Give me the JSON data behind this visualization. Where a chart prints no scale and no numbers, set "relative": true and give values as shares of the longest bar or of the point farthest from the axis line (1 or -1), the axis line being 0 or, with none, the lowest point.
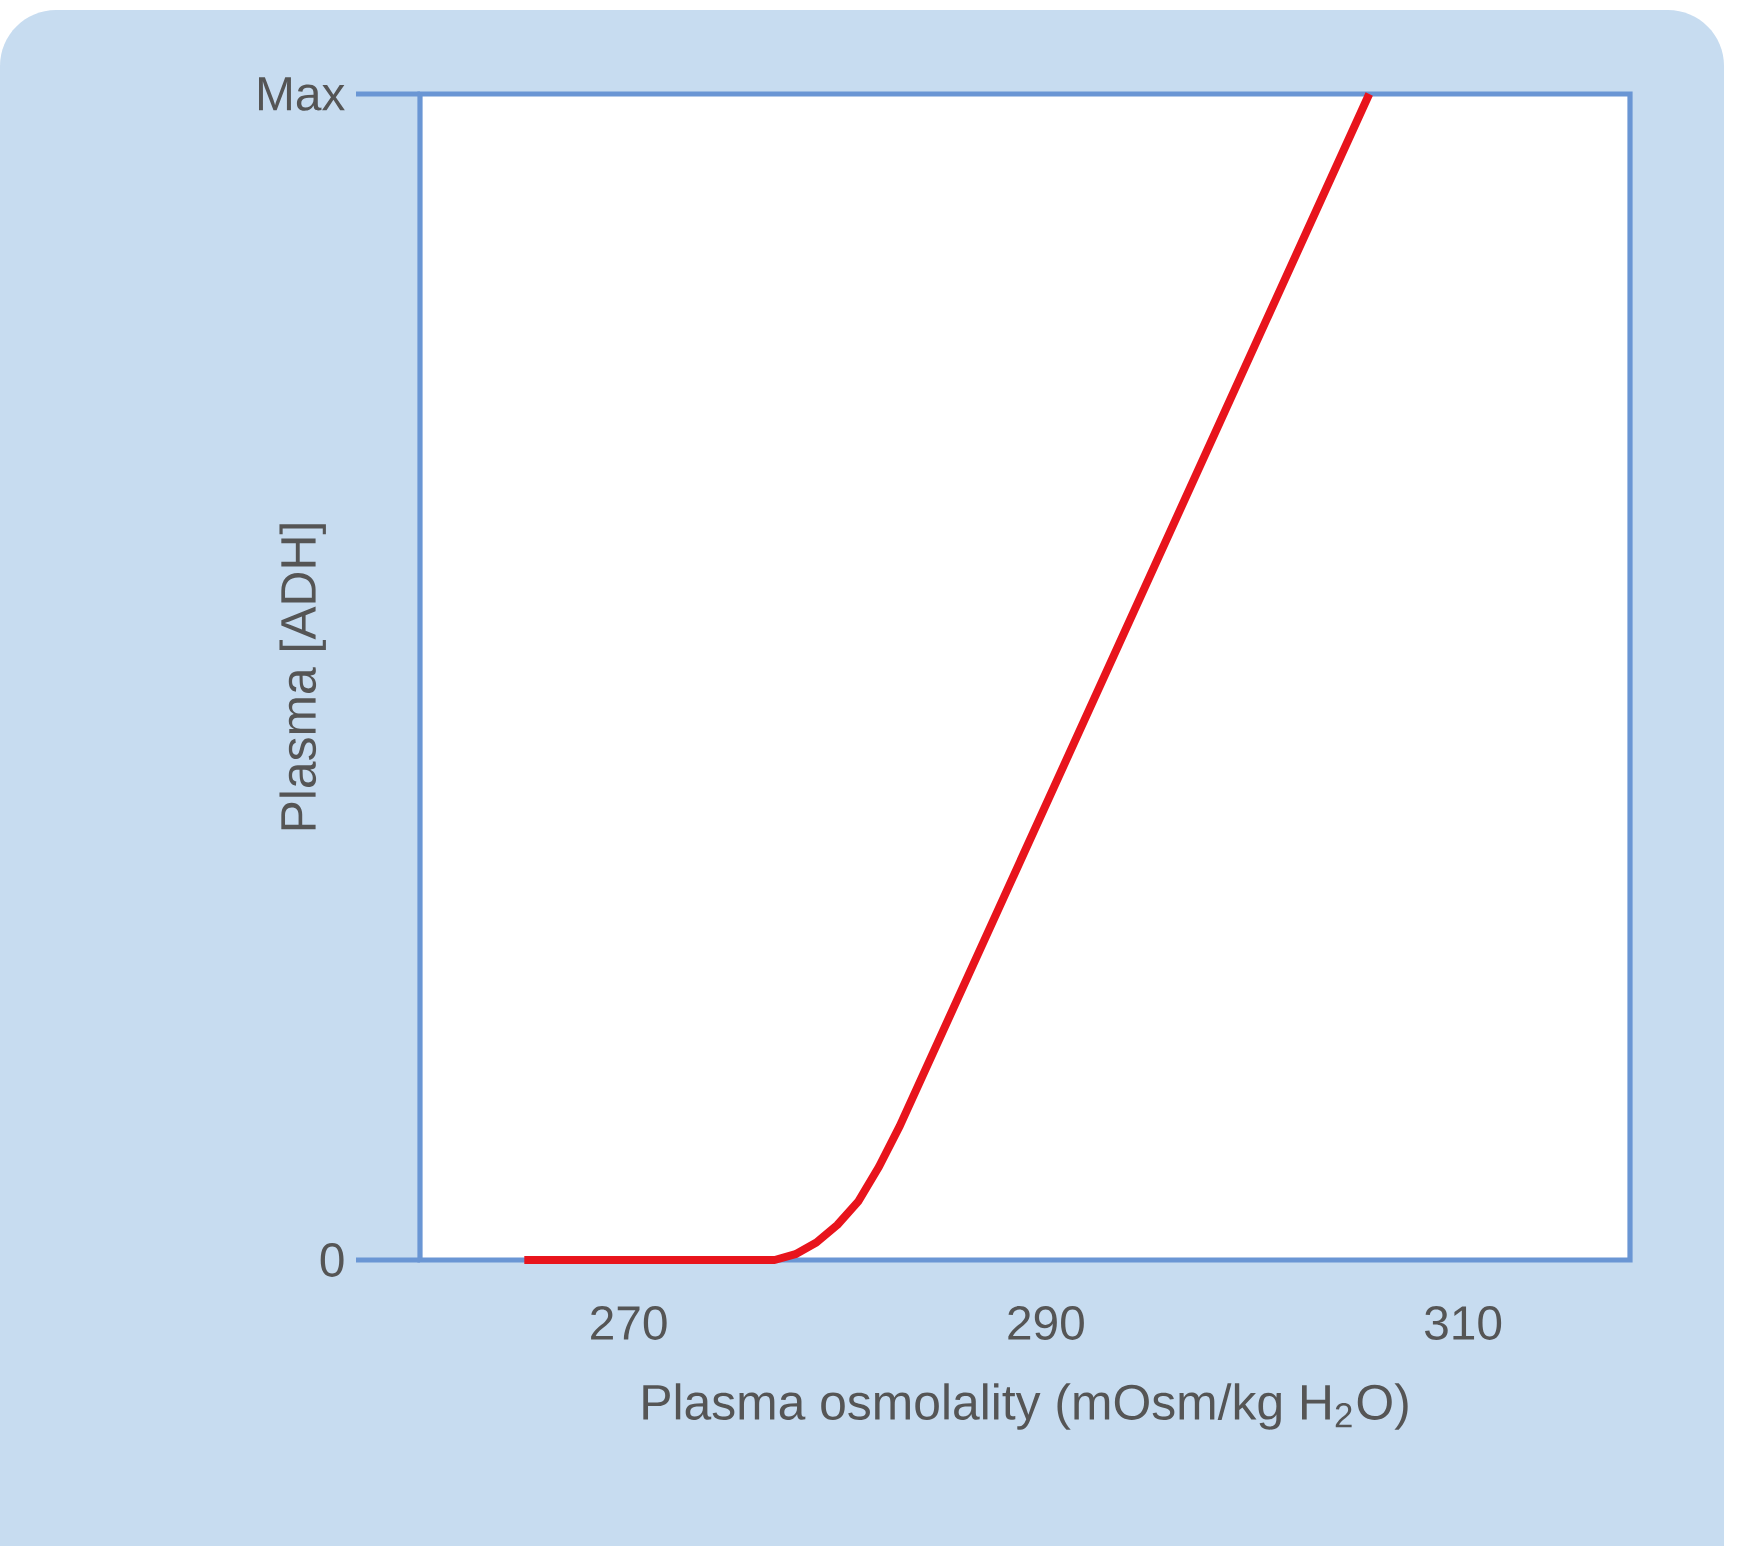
{
  "chart_data": {
    "type": "line",
    "xlabel": "Plasma osmolality (mOsm/kg H$_{2}$O)",
    "ylabel": "Plasma [ADH]",
    "relative": true,
    "annotations": [
      "0",
      "Max"
    ],
    "x": [
      265,
      277,
      278,
      279,
      280,
      281,
      282,
      283,
      305.5
    ],
    "values": [
      0,
      0,
      0.005,
      0.015,
      0.03,
      0.05,
      0.08,
      0.115,
      1
    ],
    "color": "#e8141c",
    "marker": "none",
    "xlim": [
      260,
      318
    ],
    "xticks": [
      270,
      290,
      310
    ],
    "grid": false
  }
}
